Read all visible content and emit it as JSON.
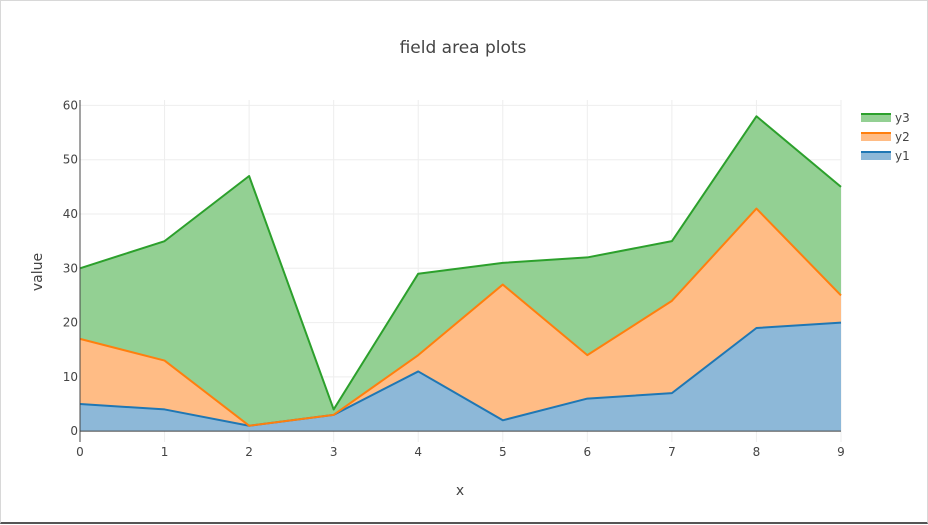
{
  "chart_data": {
    "type": "area",
    "title": "field area plots",
    "xlabel": "x",
    "ylabel": "value",
    "x": [
      0,
      1,
      2,
      3,
      4,
      5,
      6,
      7,
      8,
      9
    ],
    "xlim": [
      0,
      9
    ],
    "ylim": [
      -2,
      61
    ],
    "yticks": [
      0,
      10,
      20,
      30,
      40,
      50,
      60
    ],
    "stacked": true,
    "grid": true,
    "legend_position": "top-right",
    "series": [
      {
        "name": "y1",
        "values": [
          5,
          4,
          1,
          3,
          11,
          2,
          6,
          7,
          19,
          20
        ],
        "color": "#1f77b4",
        "fill": "#8db8d8"
      },
      {
        "name": "y2",
        "values": [
          12,
          9,
          0,
          0,
          3,
          25,
          8,
          17,
          22,
          5
        ],
        "color": "#ff7f0e",
        "fill": "#ffbc85"
      },
      {
        "name": "y3",
        "values": [
          13,
          22,
          46,
          1,
          15,
          4,
          18,
          11,
          17,
          20
        ],
        "color": "#2ca02c",
        "fill": "#93d093"
      }
    ]
  }
}
